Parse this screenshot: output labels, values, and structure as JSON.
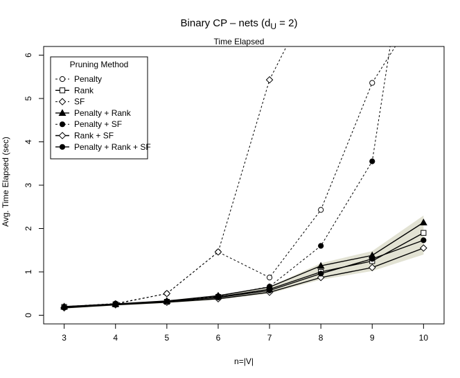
{
  "chart_data": {
    "type": "line",
    "title": "Binary CP – nets (d",
    "title_sub": "U",
    "title_suffix": " = 2)",
    "subtitle": "Time Elapsed",
    "xlabel": "n=|V|",
    "ylabel": "Avg. Time Elapsed (sec)",
    "x": [
      3,
      4,
      5,
      6,
      7,
      8,
      9,
      10
    ],
    "xlim": [
      2.6,
      10.4
    ],
    "ylim": [
      -0.2,
      6.2
    ],
    "xticks": [
      3,
      4,
      5,
      6,
      7,
      8,
      9,
      10
    ],
    "yticks": [
      0,
      1,
      2,
      3,
      4,
      5,
      6
    ],
    "legend_title": "Pruning Method",
    "legend_position": "top-left",
    "confidence_band": {
      "x": [
        3,
        4,
        5,
        6,
        7,
        8,
        9,
        10
      ],
      "lower": [
        0.15,
        0.22,
        0.28,
        0.36,
        0.5,
        0.82,
        1.02,
        1.4
      ],
      "upper": [
        0.21,
        0.27,
        0.34,
        0.45,
        0.66,
        1.2,
        1.48,
        2.3
      ]
    },
    "series": [
      {
        "name": "Penalty",
        "marker": "open-circle",
        "dash": true,
        "x": [
          3,
          4,
          5,
          6,
          7,
          8,
          9,
          9.45
        ],
        "values": [
          0.2,
          0.27,
          0.5,
          1.46,
          0.87,
          2.43,
          5.36,
          6.2
        ],
        "marker_count": 7
      },
      {
        "name": "Rank",
        "marker": "open-square",
        "dash": false,
        "x": [
          3,
          4,
          5,
          6,
          7,
          8,
          9,
          10
        ],
        "values": [
          0.19,
          0.25,
          0.31,
          0.42,
          0.6,
          1.0,
          1.25,
          1.9
        ],
        "marker_count": 8
      },
      {
        "name": "SF",
        "marker": "open-diamond",
        "dash": true,
        "x": [
          3,
          4,
          5,
          6,
          7,
          7.33
        ],
        "values": [
          0.18,
          0.26,
          0.5,
          1.46,
          5.43,
          6.2
        ],
        "marker_count": 5
      },
      {
        "name": "Penalty + Rank",
        "marker": "filled-triangle",
        "dash": false,
        "x": [
          3,
          4,
          5,
          6,
          7,
          8,
          9,
          10
        ],
        "values": [
          0.2,
          0.26,
          0.33,
          0.45,
          0.65,
          1.14,
          1.38,
          2.14
        ],
        "marker_count": 8
      },
      {
        "name": "Penalty + SF",
        "marker": "filled-circle",
        "dash": true,
        "x": [
          3,
          4,
          5,
          6,
          7,
          8,
          9,
          9.35
        ],
        "values": [
          0.18,
          0.25,
          0.32,
          0.44,
          0.66,
          1.6,
          3.55,
          6.2
        ],
        "marker_count": 7
      },
      {
        "name": "Rank + SF",
        "marker": "open-diamond",
        "dash": false,
        "x": [
          3,
          4,
          5,
          6,
          7,
          8,
          9,
          10
        ],
        "values": [
          0.17,
          0.24,
          0.3,
          0.38,
          0.53,
          0.87,
          1.1,
          1.55
        ],
        "marker_count": 8
      },
      {
        "name": "Penalty + Rank + SF",
        "marker": "filled-circle",
        "dash": false,
        "x": [
          3,
          4,
          5,
          6,
          7,
          8,
          9,
          10
        ],
        "values": [
          0.18,
          0.25,
          0.32,
          0.41,
          0.57,
          0.96,
          1.3,
          1.73
        ],
        "marker_count": 8
      }
    ],
    "colors": {
      "line": "#000000",
      "band": "#e2e2d3",
      "background": "#ffffff"
    }
  }
}
